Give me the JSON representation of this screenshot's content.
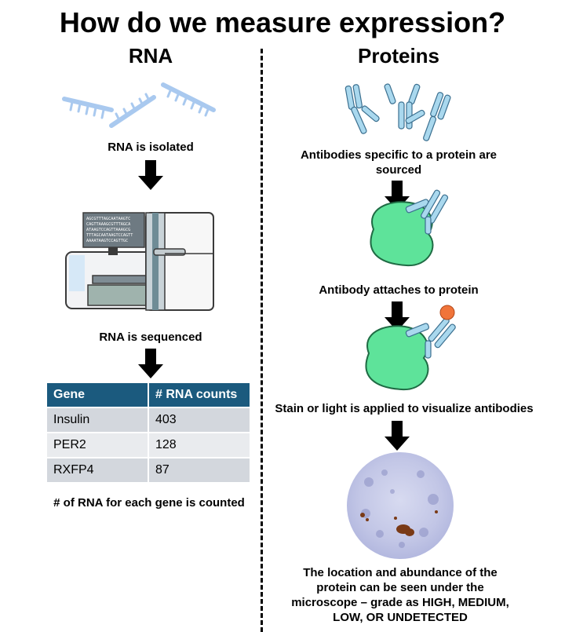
{
  "title": "How do we measure expression?",
  "rna": {
    "heading": "RNA",
    "step1": "RNA is isolated",
    "step2": "RNA is sequenced",
    "step3": "# of RNA for each gene is counted",
    "screen_lines": [
      "AGCGTTTAGCAATAAGTC",
      "CAGTTAAAGCGTTTAGCA",
      "ATAAGTCCAGTTAAAGCG",
      "TTTAGCAATAAGTCCAGTT",
      "AAAATAAGTCCAGTTGC"
    ],
    "table": {
      "headers": [
        "Gene",
        "# RNA counts"
      ],
      "rows": [
        [
          "Insulin",
          "403"
        ],
        [
          "PER2",
          "128"
        ],
        [
          "RXFP4",
          "87"
        ]
      ]
    }
  },
  "proteins": {
    "heading": "Proteins",
    "step1": "Antibodies specific to a protein are sourced",
    "step2": "Antibody attaches to protein",
    "step3": "Stain or light is applied to visualize antibodies",
    "step4": "The location and abundance of the protein can be seen under the microscope – grade as HIGH, MEDIUM, LOW, OR UNDETECTED"
  },
  "colors": {
    "header_blue": "#1b5a7e",
    "rna_strand": "#a9c9ef",
    "antibody": "#a9d8ee",
    "protein_green": "#5ee39a",
    "stain_orange": "#f0743a",
    "tissue_purple": "#b8bde0",
    "stain_brown": "#7a3a16"
  }
}
